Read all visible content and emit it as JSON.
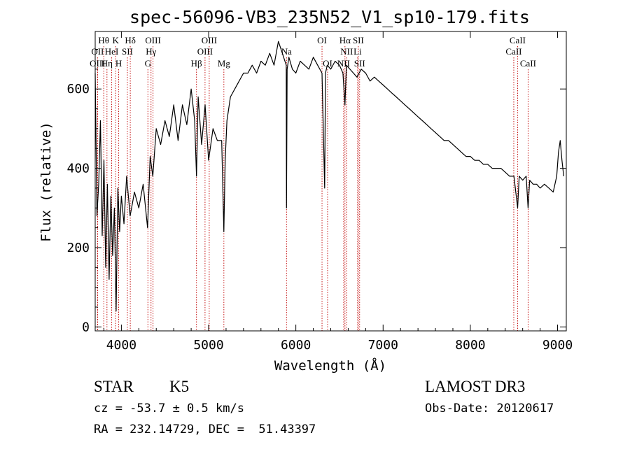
{
  "chart_data": {
    "type": "line",
    "title": "spec-56096-VB3_235N52_V1_sp10-179.fits",
    "xlabel": "Wavelength (Å)",
    "ylabel": "Flux (relative)",
    "xlim": [
      3700,
      9100
    ],
    "ylim": [
      -10,
      745
    ],
    "xticks": [
      4000,
      5000,
      6000,
      7000,
      8000,
      9000
    ],
    "yticks": [
      0,
      200,
      400,
      600
    ],
    "series": [
      {
        "x": [
          3700,
          3720,
          3740,
          3760,
          3780,
          3800,
          3820,
          3840,
          3860,
          3880,
          3900,
          3920,
          3940,
          3960,
          3980,
          4000,
          4030,
          4060,
          4100,
          4150,
          4200,
          4250,
          4300,
          4330,
          4360,
          4400,
          4450,
          4500,
          4550,
          4600,
          4650,
          4700,
          4750,
          4800,
          4840,
          4861,
          4880,
          4920,
          4960,
          5000,
          5050,
          5100,
          5150,
          5175,
          5190,
          5210,
          5250,
          5300,
          5350,
          5400,
          5450,
          5500,
          5550,
          5600,
          5650,
          5700,
          5750,
          5800,
          5830,
          5860,
          5890,
          5893,
          5900,
          5920,
          5960,
          6000,
          6050,
          6100,
          6150,
          6200,
          6250,
          6300,
          6330,
          6340,
          6360,
          6400,
          6450,
          6500,
          6540,
          6563,
          6580,
          6620,
          6660,
          6700,
          6750,
          6800,
          6850,
          6900,
          6950,
          7000,
          7050,
          7100,
          7150,
          7200,
          7250,
          7300,
          7350,
          7400,
          7450,
          7500,
          7550,
          7600,
          7650,
          7700,
          7750,
          7800,
          7850,
          7900,
          7950,
          8000,
          8050,
          8100,
          8150,
          8200,
          8250,
          8300,
          8350,
          8400,
          8450,
          8500,
          8542,
          8560,
          8600,
          8640,
          8662,
          8680,
          8720,
          8760,
          8800,
          8850,
          8900,
          8950,
          8990,
          9010,
          9030,
          9050,
          9070
        ],
        "y": [
          640,
          280,
          360,
          520,
          230,
          420,
          150,
          360,
          120,
          330,
          180,
          300,
          40,
          350,
          240,
          330,
          260,
          380,
          280,
          340,
          300,
          360,
          250,
          430,
          380,
          500,
          460,
          520,
          480,
          560,
          470,
          560,
          510,
          600,
          520,
          380,
          580,
          460,
          560,
          420,
          500,
          470,
          470,
          240,
          420,
          520,
          580,
          600,
          620,
          640,
          640,
          660,
          640,
          670,
          660,
          690,
          660,
          720,
          700,
          680,
          660,
          300,
          650,
          680,
          650,
          640,
          670,
          660,
          650,
          680,
          660,
          640,
          350,
          640,
          660,
          650,
          670,
          660,
          640,
          560,
          660,
          650,
          640,
          630,
          650,
          640,
          620,
          630,
          620,
          610,
          600,
          590,
          580,
          570,
          560,
          550,
          540,
          530,
          520,
          510,
          500,
          490,
          480,
          470,
          470,
          460,
          450,
          440,
          430,
          430,
          420,
          420,
          410,
          410,
          400,
          400,
          400,
          390,
          380,
          380,
          300,
          380,
          370,
          380,
          300,
          370,
          360,
          360,
          350,
          360,
          350,
          340,
          380,
          440,
          470,
          420,
          380
        ]
      }
    ],
    "lines": [
      {
        "label": "Hθ",
        "wl": 3798,
        "row": 1
      },
      {
        "label": "OII",
        "wl": 3727,
        "row": 2
      },
      {
        "label": "OIII",
        "wl": 3727,
        "row": 3
      },
      {
        "label": "K",
        "wl": 3934,
        "row": 1
      },
      {
        "label": "HeI",
        "wl": 3889,
        "row": 2
      },
      {
        "label": "Hη",
        "wl": 3835,
        "row": 3
      },
      {
        "label": "H",
        "wl": 3969,
        "row": 3
      },
      {
        "label": "Hδ",
        "wl": 4102,
        "row": 1
      },
      {
        "label": "SII",
        "wl": 4069,
        "row": 2
      },
      {
        "label": "OIII",
        "wl": 4363,
        "row": 1
      },
      {
        "label": "Hγ",
        "wl": 4340,
        "row": 2
      },
      {
        "label": "G",
        "wl": 4304,
        "row": 3
      },
      {
        "label": "Hβ",
        "wl": 4861,
        "row": 3
      },
      {
        "label": "OIII",
        "wl": 5007,
        "row": 1
      },
      {
        "label": "OIII",
        "wl": 4959,
        "row": 2
      },
      {
        "label": "Mg",
        "wl": 5175,
        "row": 3
      },
      {
        "label": "Na",
        "wl": 5893,
        "row": 2
      },
      {
        "label": "OI",
        "wl": 6300,
        "row": 1
      },
      {
        "label": "OI",
        "wl": 6364,
        "row": 3
      },
      {
        "label": "Hα",
        "wl": 6563,
        "row": 1
      },
      {
        "label": "SII",
        "wl": 6716,
        "row": 1
      },
      {
        "label": "NII",
        "wl": 6583,
        "row": 2
      },
      {
        "label": "Li",
        "wl": 6708,
        "row": 2
      },
      {
        "label": "NII",
        "wl": 6548,
        "row": 3
      },
      {
        "label": "SII",
        "wl": 6731,
        "row": 3
      },
      {
        "label": "CaII",
        "wl": 8542,
        "row": 1
      },
      {
        "label": "CaII",
        "wl": 8498,
        "row": 2
      },
      {
        "label": "CaII",
        "wl": 8662,
        "row": 3
      }
    ]
  },
  "info": {
    "class": "STAR",
    "subclass": "K5",
    "cz": "cz = -53.7 ± 0.5 km/s",
    "radec": "RA = 232.14729, DEC =  51.43397",
    "survey": "LAMOST DR3",
    "obsdate": "Obs-Date: 20120617"
  },
  "colors": {
    "lines": "#c00000",
    "spectrum": "#000000"
  }
}
